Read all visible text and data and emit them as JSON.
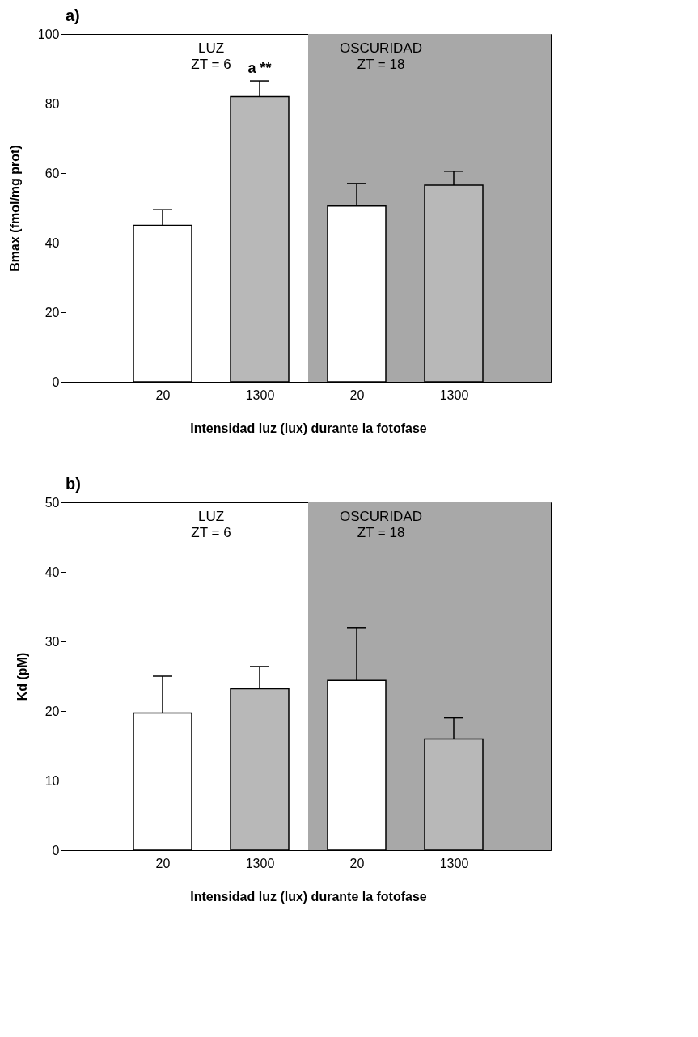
{
  "chart_data": [
    {
      "type": "bar",
      "title": "a)",
      "xlabel": "Intensidad luz (lux) durante la fotofase",
      "ylabel": "Bmax (fmol/mg prot)",
      "categories": [
        "20",
        "1300",
        "20",
        "1300"
      ],
      "values": [
        45,
        82,
        50.5,
        56.5
      ],
      "colors": [
        "#ffffff",
        "#b8b8b8",
        "#ffffff",
        "#b8b8b8"
      ],
      "errors": [
        [
          45,
          49.5
        ],
        [
          82,
          86.5
        ],
        [
          50.5,
          57
        ],
        [
          56.5,
          60.5
        ]
      ],
      "ylim": [
        0,
        100
      ],
      "yticks": [
        0,
        20,
        40,
        60,
        80,
        100
      ],
      "annotations": [
        "LUZ\nZT = 6",
        "OSCURIDAD\nZT = 18",
        {
          "text": "a **",
          "x": "1300",
          "y": 86.5
        }
      ]
    },
    {
      "type": "bar",
      "title": "b)",
      "xlabel": "Intensidad luz (lux) durante la fotofase",
      "ylabel": "Kd (pM)",
      "categories": [
        "20",
        "1300",
        "20",
        "1300"
      ],
      "values": [
        19.7,
        23.2,
        24.4,
        16
      ],
      "colors": [
        "#ffffff",
        "#b8b8b8",
        "#ffffff",
        "#b8b8b8"
      ],
      "errors": [
        [
          19.7,
          25
        ],
        [
          23.2,
          26.4
        ],
        [
          24.4,
          32
        ],
        [
          16,
          19
        ]
      ],
      "ylim": [
        0,
        50
      ],
      "yticks": [
        0,
        10,
        20,
        30,
        40,
        50
      ],
      "annotations": [
        "LUZ\nZT = 6",
        "OSCURIDAD\nZT = 18"
      ]
    }
  ]
}
